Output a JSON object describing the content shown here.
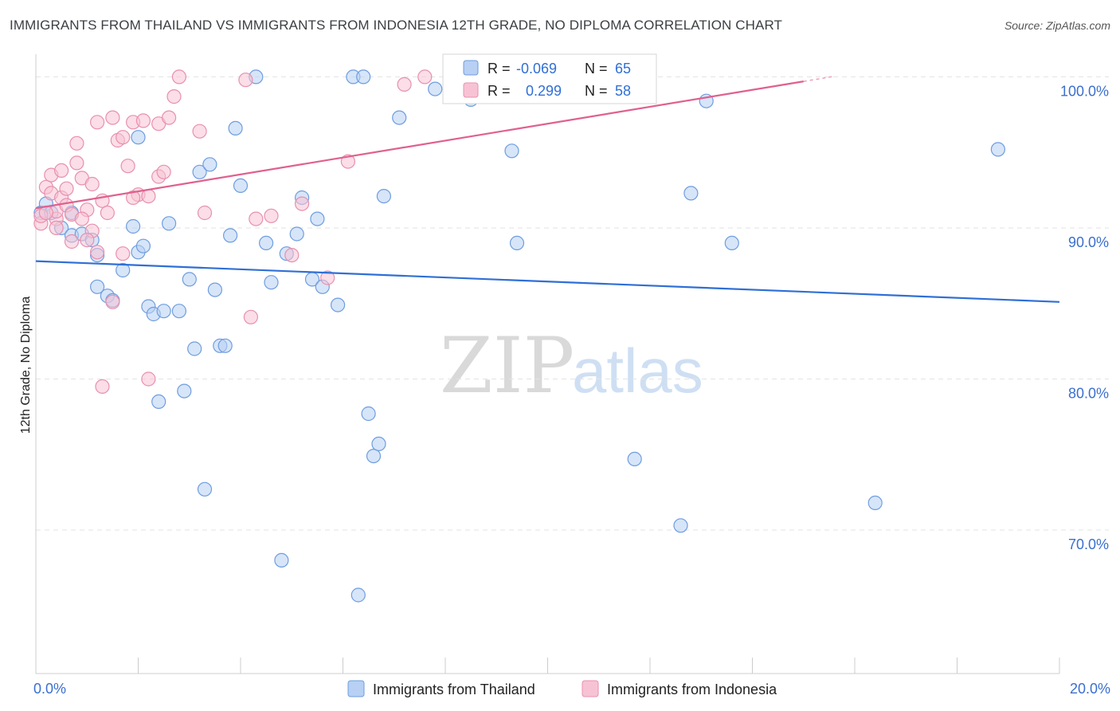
{
  "header": {
    "title": "IMMIGRANTS FROM THAILAND VS IMMIGRANTS FROM INDONESIA 12TH GRADE, NO DIPLOMA CORRELATION CHART",
    "source": "Source: ZipAtlas.com"
  },
  "watermark": {
    "part1": "ZIP",
    "part2": "atlas"
  },
  "legend": {
    "thailand": {
      "r_label": "R =",
      "r_value": "-0.069",
      "n_label": "N =",
      "n_value": "65"
    },
    "indonesia": {
      "r_label": "R =",
      "r_value": "0.299",
      "n_label": "N =",
      "n_value": "58"
    }
  },
  "bottom_legend": {
    "thailand": "Immigrants from Thailand",
    "indonesia": "Immigrants from Indonesia"
  },
  "colors": {
    "thailand_fill": "#b7d0f3",
    "thailand_stroke": "#6e9de0",
    "thailand_line": "#2f6fd6",
    "indonesia_fill": "#f7c3d4",
    "indonesia_stroke": "#e890ae",
    "indonesia_line": "#e0608e",
    "grid": "#e3e3e3",
    "tick_label": "#3b6fcf"
  },
  "chart_data": {
    "type": "scatter",
    "title": "IMMIGRANTS FROM THAILAND VS IMMIGRANTS FROM INDONESIA 12TH GRADE, NO DIPLOMA CORRELATION CHART",
    "xlabel": "",
    "ylabel": "12th Grade, No Diploma",
    "xlim": [
      0,
      20
    ],
    "ylim": [
      60.5,
      101.5
    ],
    "x_tick_labels": [
      {
        "value": 0,
        "label": "0.0%"
      },
      {
        "value": 20,
        "label": "20.0%"
      }
    ],
    "y_tick_labels": [
      {
        "value": 100,
        "label": "100.0%"
      },
      {
        "value": 90,
        "label": "90.0%"
      },
      {
        "value": 80,
        "label": "80.0%"
      },
      {
        "value": 70,
        "label": "70.0%"
      }
    ],
    "x_minor_ticks": [
      0,
      2,
      4,
      6,
      8,
      10,
      12,
      14,
      16,
      18,
      20
    ],
    "series": [
      {
        "name": "Immigrants from Thailand",
        "color": "#6e9de0",
        "trend": {
          "x0": 0,
          "y0": 87.8,
          "x1": 20,
          "y1": 85.1
        },
        "points": [
          [
            0.1,
            91.0
          ],
          [
            0.2,
            91.6
          ],
          [
            0.3,
            91.0
          ],
          [
            0.5,
            90.0
          ],
          [
            0.7,
            89.5
          ],
          [
            0.7,
            91.0
          ],
          [
            0.9,
            89.6
          ],
          [
            1.1,
            89.2
          ],
          [
            1.2,
            88.2
          ],
          [
            1.2,
            86.1
          ],
          [
            1.4,
            85.5
          ],
          [
            1.5,
            85.2
          ],
          [
            1.7,
            87.2
          ],
          [
            1.9,
            90.1
          ],
          [
            2.0,
            88.4
          ],
          [
            2.1,
            88.8
          ],
          [
            2.2,
            84.8
          ],
          [
            2.3,
            84.3
          ],
          [
            2.4,
            78.5
          ],
          [
            2.5,
            84.5
          ],
          [
            2.6,
            90.3
          ],
          [
            2.8,
            84.5
          ],
          [
            2.9,
            79.2
          ],
          [
            3.0,
            86.6
          ],
          [
            3.1,
            82.0
          ],
          [
            3.2,
            93.7
          ],
          [
            3.3,
            72.7
          ],
          [
            3.4,
            94.2
          ],
          [
            3.5,
            85.9
          ],
          [
            3.6,
            82.2
          ],
          [
            3.7,
            82.2
          ],
          [
            3.8,
            89.5
          ],
          [
            3.9,
            96.6
          ],
          [
            4.0,
            92.8
          ],
          [
            4.3,
            100.0
          ],
          [
            4.5,
            89.0
          ],
          [
            4.6,
            86.4
          ],
          [
            4.8,
            68.0
          ],
          [
            5.1,
            89.6
          ],
          [
            5.2,
            92.0
          ],
          [
            5.4,
            86.6
          ],
          [
            5.5,
            90.6
          ],
          [
            5.6,
            86.1
          ],
          [
            5.9,
            84.9
          ],
          [
            6.2,
            100.0
          ],
          [
            6.3,
            65.7
          ],
          [
            6.4,
            100.0
          ],
          [
            6.5,
            77.7
          ],
          [
            6.6,
            74.9
          ],
          [
            6.7,
            75.7
          ],
          [
            6.8,
            92.1
          ],
          [
            7.1,
            97.3
          ],
          [
            8.5,
            98.5
          ],
          [
            9.3,
            95.1
          ],
          [
            9.4,
            89.0
          ],
          [
            11.7,
            74.7
          ],
          [
            12.6,
            70.3
          ],
          [
            12.8,
            92.3
          ],
          [
            13.1,
            98.4
          ],
          [
            13.6,
            89.0
          ],
          [
            16.4,
            71.8
          ],
          [
            18.8,
            95.2
          ],
          [
            4.9,
            88.3
          ],
          [
            7.8,
            99.2
          ],
          [
            2.0,
            96.0
          ]
        ]
      },
      {
        "name": "Immigrants from Indonesia",
        "color": "#e890ae",
        "trend": {
          "x0": 0,
          "y0": 91.3,
          "x1": 15.0,
          "y1": 99.7
        },
        "points": [
          [
            0.1,
            90.3
          ],
          [
            0.1,
            90.8
          ],
          [
            0.2,
            92.7
          ],
          [
            0.3,
            92.3
          ],
          [
            0.3,
            93.5
          ],
          [
            0.4,
            90.6
          ],
          [
            0.4,
            91.1
          ],
          [
            0.5,
            93.8
          ],
          [
            0.5,
            92.0
          ],
          [
            0.6,
            91.5
          ],
          [
            0.7,
            90.9
          ],
          [
            0.7,
            89.1
          ],
          [
            0.8,
            95.6
          ],
          [
            0.8,
            94.3
          ],
          [
            0.9,
            93.3
          ],
          [
            1.0,
            91.2
          ],
          [
            1.1,
            92.9
          ],
          [
            1.1,
            89.8
          ],
          [
            1.2,
            88.4
          ],
          [
            1.2,
            97.0
          ],
          [
            1.3,
            91.8
          ],
          [
            1.4,
            91.0
          ],
          [
            1.5,
            97.3
          ],
          [
            1.6,
            95.8
          ],
          [
            1.7,
            88.3
          ],
          [
            1.7,
            96.0
          ],
          [
            1.8,
            94.1
          ],
          [
            1.9,
            97.0
          ],
          [
            2.0,
            92.2
          ],
          [
            2.1,
            97.1
          ],
          [
            2.2,
            92.1
          ],
          [
            2.2,
            80.0
          ],
          [
            2.4,
            96.9
          ],
          [
            2.4,
            93.4
          ],
          [
            2.5,
            93.7
          ],
          [
            2.6,
            97.3
          ],
          [
            2.7,
            98.7
          ],
          [
            2.8,
            100.0
          ],
          [
            3.2,
            96.4
          ],
          [
            3.3,
            91.0
          ],
          [
            4.1,
            99.8
          ],
          [
            4.2,
            84.1
          ],
          [
            4.3,
            90.6
          ],
          [
            4.6,
            90.8
          ],
          [
            5.0,
            88.2
          ],
          [
            5.2,
            91.6
          ],
          [
            5.7,
            86.7
          ],
          [
            6.1,
            94.4
          ],
          [
            1.3,
            79.5
          ],
          [
            1.5,
            85.1
          ],
          [
            0.9,
            90.6
          ],
          [
            1.0,
            89.2
          ],
          [
            0.6,
            92.6
          ],
          [
            0.2,
            91.0
          ],
          [
            7.2,
            99.5
          ],
          [
            7.6,
            100.0
          ],
          [
            1.9,
            92.0
          ],
          [
            0.4,
            90.0
          ]
        ]
      }
    ]
  }
}
